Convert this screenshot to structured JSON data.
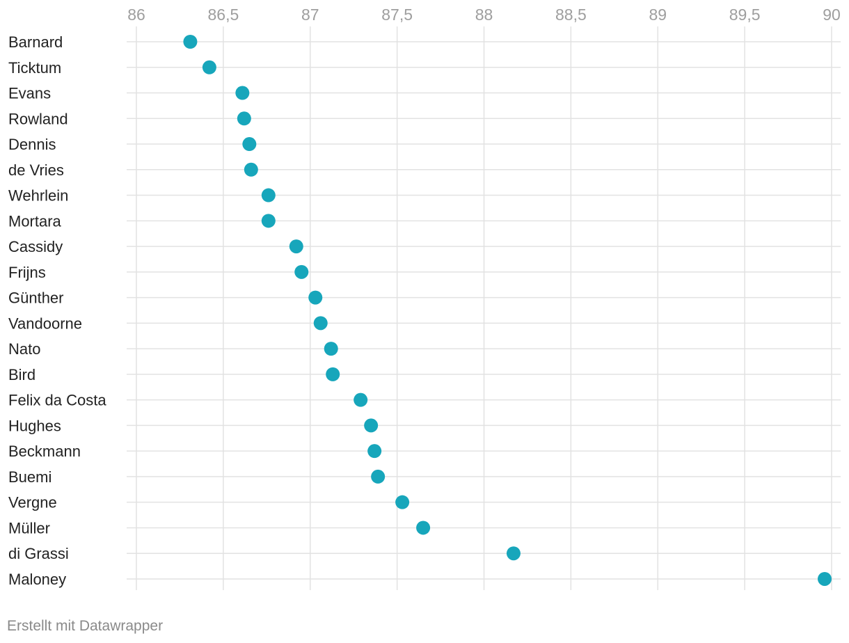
{
  "chart_data": {
    "type": "scatter",
    "title": "",
    "xlabel": "",
    "ylabel": "",
    "xlim": [
      86,
      90
    ],
    "x_ticks": [
      "86",
      "86,5",
      "87",
      "87,5",
      "88",
      "88,5",
      "89",
      "89,5",
      "90"
    ],
    "x_tick_values": [
      86,
      86.5,
      87,
      87.5,
      88,
      88.5,
      89,
      89.5,
      90
    ],
    "grid": true,
    "categories": [
      "Barnard",
      "Ticktum",
      "Evans",
      "Rowland",
      "Dennis",
      "de Vries",
      "Wehrlein",
      "Mortara",
      "Cassidy",
      "Frijns",
      "Günther",
      "Vandoorne",
      "Nato",
      "Bird",
      "Felix da Costa",
      "Hughes",
      "Beckmann",
      "Buemi",
      "Vergne",
      "Müller",
      "di Grassi",
      "Maloney"
    ],
    "values": [
      86.31,
      86.42,
      86.61,
      86.62,
      86.65,
      86.66,
      86.76,
      86.76,
      86.92,
      86.95,
      87.03,
      87.06,
      87.12,
      87.13,
      87.29,
      87.35,
      87.37,
      87.39,
      87.53,
      87.65,
      88.17,
      89.96
    ],
    "colors": {
      "dot": "#17a6bb",
      "grid": "#e2e2e2",
      "tick_label": "#9e9e9e",
      "category_label": "#222222"
    }
  },
  "footer": {
    "credit": "Erstellt mit Datawrapper"
  }
}
